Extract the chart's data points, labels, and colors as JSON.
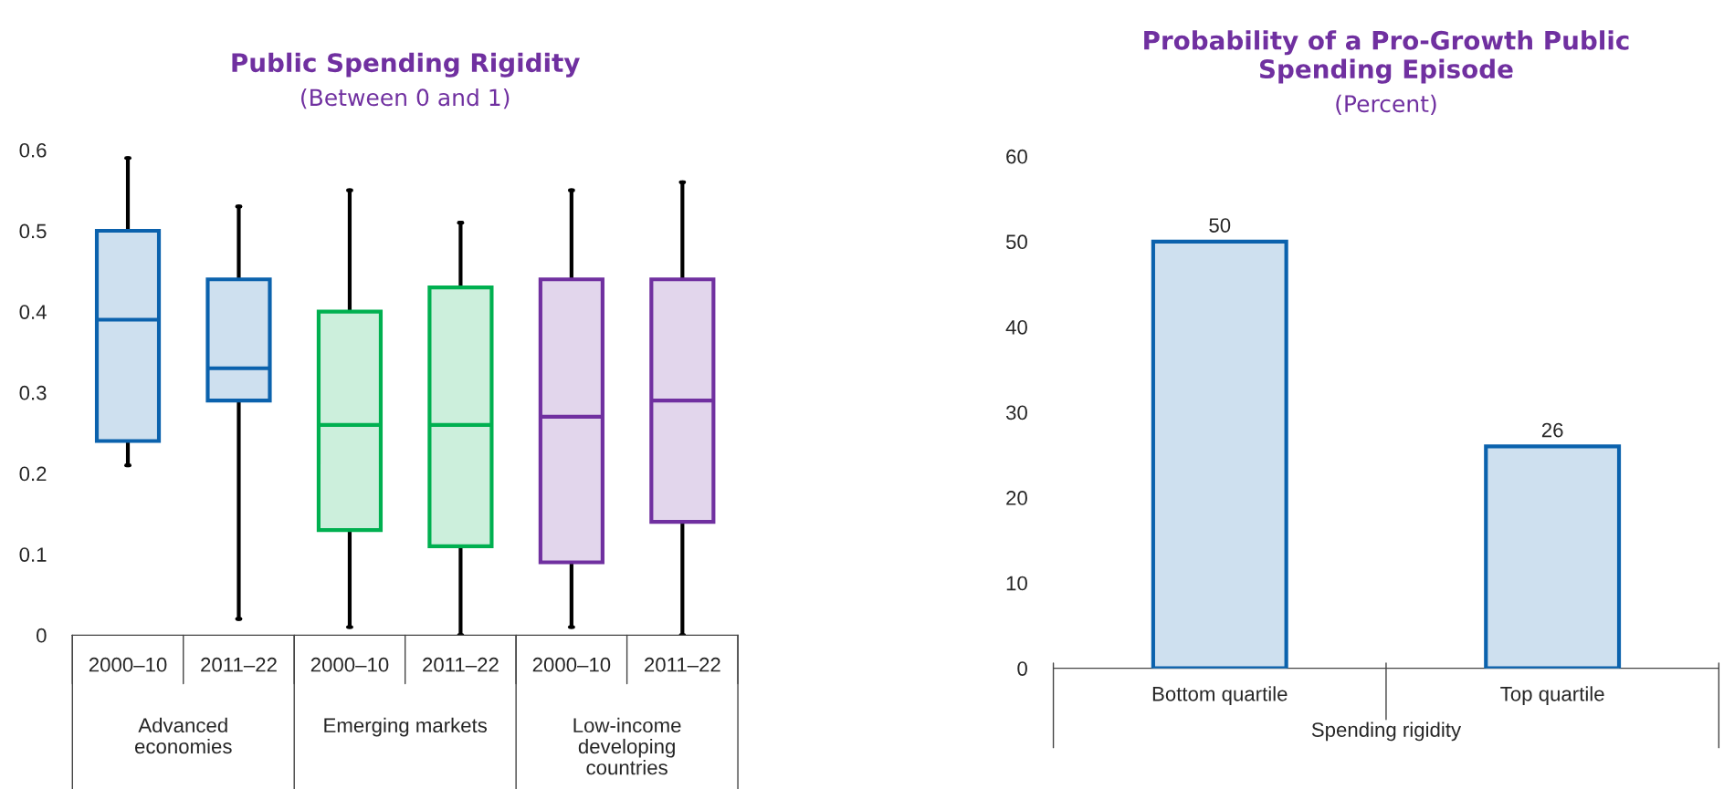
{
  "chart_data": [
    {
      "type": "box",
      "title": "Public Spending Rigidity",
      "subtitle": "(Between 0 and 1)",
      "categories": [
        "2000–10",
        "2011–22",
        "2000–10",
        "2011–22",
        "2000–10",
        "2011–22"
      ],
      "annotations": [
        "Advanced\neconomies",
        "Emerging markets",
        "Low-income\ndeveloping\ncountries"
      ],
      "ylim": [
        0,
        0.6
      ],
      "yticks": [
        0,
        0.1,
        0.2,
        0.3,
        0.4,
        0.5,
        0.6
      ],
      "grid": false,
      "series": [
        {
          "color": "#0b62ad",
          "boxes": [
            {
              "low": 0.21,
              "q1": 0.24,
              "median": 0.39,
              "q3": 0.5,
              "high": 0.59
            },
            {
              "low": 0.02,
              "q1": 0.29,
              "median": 0.33,
              "q3": 0.44,
              "high": 0.53
            },
            null,
            null,
            null,
            null
          ]
        },
        {
          "color": "#00b050",
          "boxes": [
            null,
            null,
            {
              "low": 0.01,
              "q1": 0.13,
              "median": 0.26,
              "q3": 0.4,
              "high": 0.55
            },
            {
              "low": 0,
              "q1": 0.11,
              "median": 0.26,
              "q3": 0.43,
              "high": 0.51
            },
            null,
            null
          ]
        },
        {
          "color": "#7030a0",
          "boxes": [
            null,
            null,
            null,
            null,
            {
              "low": 0.01,
              "q1": 0.09,
              "median": 0.27,
              "q3": 0.44,
              "high": 0.55
            },
            {
              "low": 0,
              "q1": 0.14,
              "median": 0.29,
              "q3": 0.44,
              "high": 0.56
            }
          ]
        }
      ]
    },
    {
      "type": "bar",
      "title": "Probability of a Pro-Growth Public\nSpending Episode",
      "subtitle": "(Percent)",
      "xlabel": "Spending rigidity",
      "categories": [
        "Bottom quartile",
        "Top quartile"
      ],
      "values": [
        50,
        26
      ],
      "color": "#0b62ad",
      "data_labels": true,
      "ylim": [
        0,
        60
      ],
      "yticks": [
        0,
        10,
        20,
        30,
        40,
        50,
        60
      ],
      "grid": false
    }
  ]
}
